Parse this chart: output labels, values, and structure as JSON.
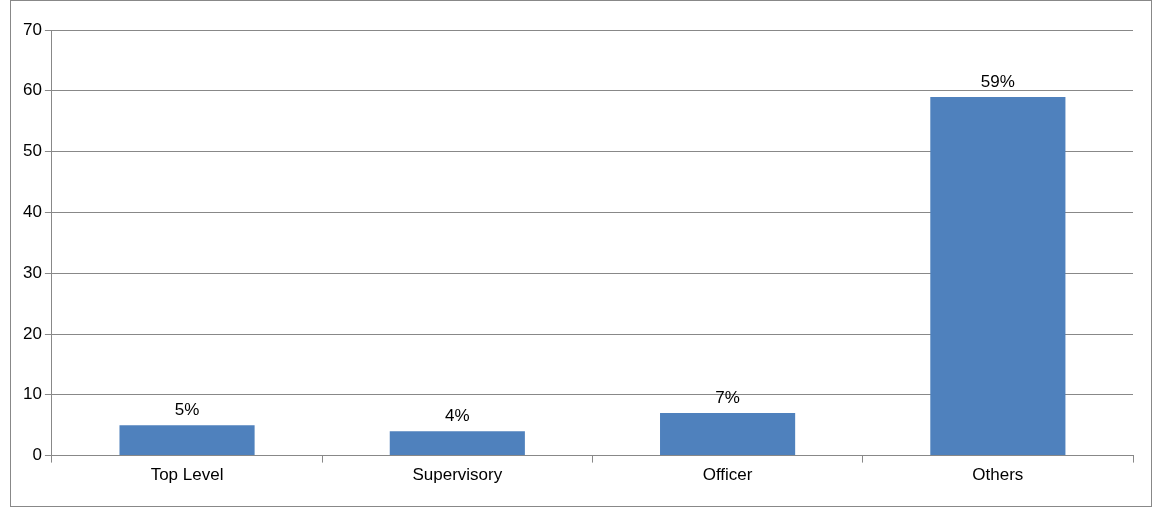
{
  "chart_data": {
    "type": "bar",
    "categories": [
      "Top Level",
      "Supervisory",
      "Officer",
      "Others"
    ],
    "values": [
      5,
      4,
      7,
      59
    ],
    "value_labels": [
      "5%",
      "4%",
      "7%",
      "59%"
    ],
    "color": "#4f81bd",
    "ylim": [
      0,
      70
    ],
    "yticks": [
      0,
      10,
      20,
      30,
      40,
      50,
      60,
      70
    ],
    "grid": "y",
    "legend": false
  }
}
